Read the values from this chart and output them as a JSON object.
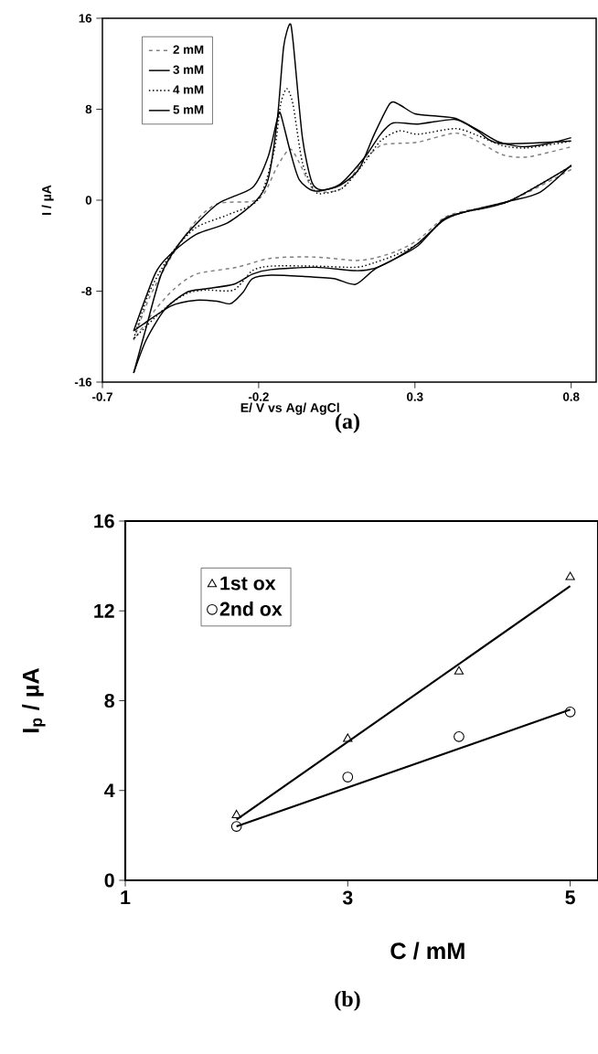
{
  "chart_data": [
    {
      "type": "line",
      "xlabel": "E/ V vs Ag/ AgCl",
      "ylabel": "I / µA",
      "xlim": [
        -0.7,
        0.88
      ],
      "xticks": [
        -0.7,
        -0.2,
        0.3,
        0.8
      ],
      "ylim": [
        -16,
        16
      ],
      "yticks": [
        -16,
        -8,
        0,
        8,
        16
      ],
      "legend": "top left",
      "annotations": [
        "(a)"
      ],
      "series": [
        {
          "name": "2 mM",
          "color": "#808080",
          "line_style": "dashed",
          "x": [
            -0.6,
            -0.55,
            -0.48,
            -0.4,
            -0.33,
            -0.22,
            -0.18,
            -0.14,
            -0.1,
            -0.07,
            -0.03,
            0.01,
            0.07,
            0.13,
            0.19,
            0.25,
            0.31,
            0.43,
            0.5,
            0.58,
            0.66,
            0.8
          ],
          "values": [
            -12.3,
            -8.6,
            -5.0,
            -1.8,
            -0.3,
            -0.1,
            0.7,
            3.0,
            4.5,
            3.3,
            1.1,
            0.7,
            1.1,
            3.3,
            4.8,
            5.0,
            5.1,
            5.9,
            5.2,
            4.0,
            3.8,
            4.7
          ]
        },
        {
          "color": "#808080",
          "line_style": "dashed",
          "x": [
            0.8,
            0.6,
            0.45,
            0.39,
            0.31,
            0.24,
            0.17,
            0.11,
            -0.02,
            -0.16,
            -0.27,
            -0.4,
            -0.47,
            -0.53,
            -0.6
          ],
          "values": [
            2.7,
            -0.1,
            -1.0,
            -1.6,
            -3.5,
            -4.5,
            -5.1,
            -5.3,
            -5.0,
            -5.1,
            -5.9,
            -6.5,
            -7.8,
            -9.6,
            -12.3
          ]
        },
        {
          "name": "3 mM",
          "color": "#000000",
          "line_style": "solid",
          "x": [
            -0.6,
            -0.56,
            -0.51,
            -0.44,
            -0.33,
            -0.22,
            -0.17,
            -0.14,
            -0.13,
            -0.1,
            -0.07,
            -0.02,
            0.06,
            0.14,
            0.19,
            0.23,
            0.31,
            0.43,
            0.5,
            0.57,
            0.8
          ],
          "values": [
            -15.2,
            -11.2,
            -6.4,
            -3.3,
            -0.3,
            1.1,
            3.8,
            7.2,
            7.6,
            4.4,
            1.8,
            0.8,
            1.4,
            3.8,
            5.8,
            6.8,
            6.7,
            7.1,
            6.1,
            5.0,
            5.2
          ]
        },
        {
          "color": "#000000",
          "line_style": "solid",
          "x": [
            0.8,
            0.6,
            0.45,
            0.39,
            0.31,
            0.24,
            0.17,
            0.11,
            -0.02,
            -0.16,
            -0.22,
            -0.28,
            -0.37,
            -0.43,
            -0.5,
            -0.56,
            -0.6
          ],
          "values": [
            3.0,
            -0.1,
            -1.1,
            -1.8,
            -3.8,
            -5.1,
            -6.0,
            -6.2,
            -5.9,
            -6.1,
            -6.5,
            -7.4,
            -7.8,
            -8.1,
            -9.6,
            -12.3,
            -15.2
          ]
        },
        {
          "name": "4 mM",
          "color": "#000000",
          "line_style": "dotted",
          "x": [
            -0.6,
            -0.55,
            -0.48,
            -0.4,
            -0.3,
            -0.2,
            -0.15,
            -0.13,
            -0.11,
            -0.09,
            -0.06,
            -0.02,
            0.01,
            0.07,
            0.13,
            0.19,
            0.25,
            0.31,
            0.43,
            0.5,
            0.58,
            0.66,
            0.8
          ],
          "values": [
            -12.2,
            -8.1,
            -4.7,
            -2.4,
            -1.3,
            0.1,
            4.4,
            8.4,
            9.8,
            8.4,
            3.3,
            0.8,
            0.6,
            1.1,
            3.0,
            5.2,
            6.1,
            5.8,
            6.3,
            5.7,
            4.8,
            4.6,
            5.2
          ]
        },
        {
          "color": "#000000",
          "line_style": "dotted",
          "x": [
            0.8,
            0.6,
            0.45,
            0.39,
            0.31,
            0.24,
            0.17,
            0.11,
            -0.02,
            -0.16,
            -0.22,
            -0.28,
            -0.37,
            -0.43,
            -0.5,
            -0.6
          ],
          "values": [
            3.0,
            -0.1,
            -1.1,
            -1.8,
            -3.8,
            -4.8,
            -5.5,
            -5.9,
            -5.8,
            -5.8,
            -6.2,
            -7.9,
            -7.9,
            -8.2,
            -9.5,
            -12.2
          ]
        },
        {
          "name": "5 mM",
          "color": "#000000",
          "line_style": "solid",
          "x": [
            -0.6,
            -0.53,
            -0.48,
            -0.4,
            -0.3,
            -0.21,
            -0.17,
            -0.14,
            -0.12,
            -0.1,
            -0.09,
            -0.06,
            -0.03,
            0,
            0.06,
            0.12,
            0.17,
            0.22,
            0.25,
            0.3,
            0.37,
            0.43,
            0.5,
            0.57,
            0.65,
            0.73,
            0.8
          ],
          "values": [
            -11.5,
            -6.4,
            -4.7,
            -3.0,
            -2.0,
            -0.1,
            1.8,
            7.2,
            13.5,
            15.5,
            14.0,
            5.5,
            1.6,
            0.9,
            1.3,
            2.7,
            5.8,
            8.5,
            8.4,
            7.6,
            7.4,
            7.2,
            6.2,
            5.1,
            4.7,
            5.0,
            5.5
          ]
        },
        {
          "color": "#000000",
          "line_style": "solid",
          "x": [
            0.8,
            0.7,
            0.6,
            0.45,
            0.39,
            0.31,
            0.24,
            0.17,
            0.11,
            0.04,
            -0.06,
            -0.16,
            -0.22,
            -0.25,
            -0.29,
            -0.33,
            -0.4,
            -0.48,
            -0.6
          ],
          "values": [
            3.1,
            0.7,
            -0.1,
            -1.1,
            -1.7,
            -4.0,
            -5.1,
            -6.1,
            -7.4,
            -6.9,
            -6.7,
            -6.6,
            -6.9,
            -8.1,
            -9.1,
            -8.9,
            -8.8,
            -9.3,
            -11.5
          ]
        }
      ]
    },
    {
      "type": "scatter",
      "xlabel": "C / mM",
      "ylabel": "I$_{p}$ / µA",
      "xlim": [
        1,
        5.25
      ],
      "xticks": [
        1,
        3,
        5
      ],
      "ylim": [
        0,
        16
      ],
      "yticks": [
        0,
        4,
        8,
        12,
        16
      ],
      "legend": "top left",
      "annotations": [
        "(b)"
      ],
      "series": [
        {
          "name": "1st ox",
          "type": "scatter",
          "marker": "triangle",
          "color": "#000000",
          "x": [
            2,
            3,
            4,
            5
          ],
          "values": [
            2.9,
            6.3,
            9.3,
            13.5
          ]
        },
        {
          "name": "2nd ox",
          "type": "scatter",
          "marker": "circle",
          "color": "#000000",
          "x": [
            2,
            3,
            4,
            5
          ],
          "values": [
            2.4,
            4.6,
            6.4,
            7.5
          ]
        },
        {
          "type": "line",
          "color": "#000000",
          "line_style": "solid",
          "x": [
            2,
            5
          ],
          "values": [
            2.7,
            13.1
          ]
        },
        {
          "type": "line",
          "color": "#000000",
          "line_style": "solid",
          "x": [
            2,
            5
          ],
          "values": [
            2.4,
            7.6
          ]
        }
      ]
    }
  ]
}
